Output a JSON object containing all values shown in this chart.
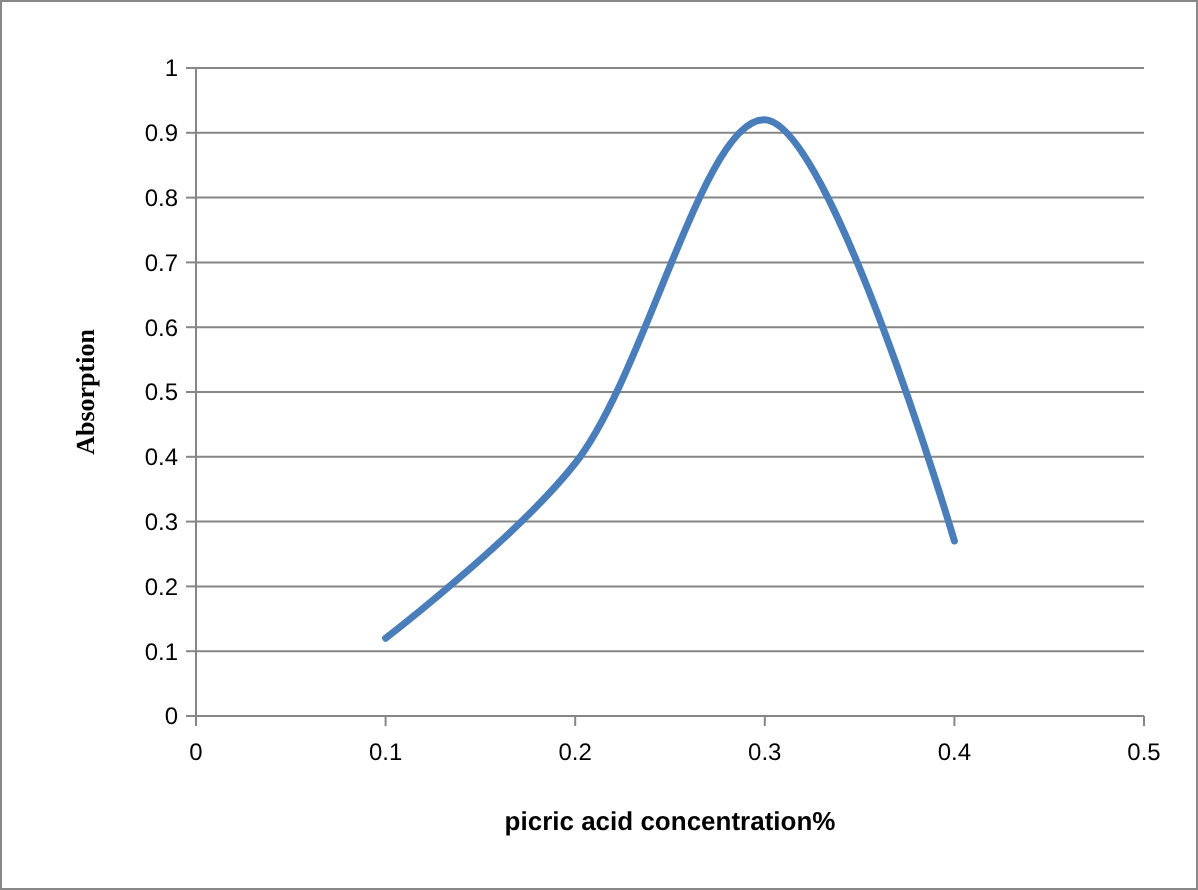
{
  "chart_data": {
    "type": "line",
    "xlabel": "picric acid concentration%",
    "ylabel": "Absorption",
    "x": [
      0.1,
      0.2,
      0.3,
      0.4
    ],
    "series": [
      {
        "color": "#4a7ebb",
        "values": [
          0.12,
          0.39,
          0.92,
          0.27
        ]
      }
    ],
    "xlim": [
      0,
      0.5
    ],
    "xticks": [
      0,
      0.1,
      0.2,
      0.3,
      0.4,
      0.5
    ],
    "ylim": [
      0,
      1
    ],
    "yticks": [
      0,
      0.1,
      0.2,
      0.3,
      0.4,
      0.5,
      0.6,
      0.7,
      0.8,
      0.9,
      1
    ],
    "grid": "y",
    "marker": "none",
    "line_style": "solid"
  }
}
